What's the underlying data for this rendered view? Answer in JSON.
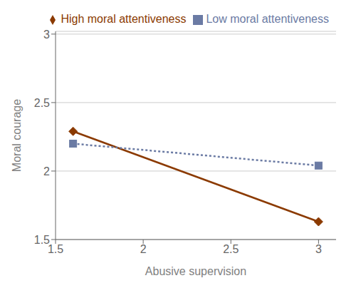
{
  "chart_data": {
    "type": "line",
    "x": [
      1.6,
      3.0
    ],
    "series": [
      {
        "name": "High moral attentiveness",
        "color": "#8B3A00",
        "values": [
          2.29,
          1.63
        ],
        "marker": "diamond",
        "line_style": "solid"
      },
      {
        "name": "Low moral attentiveness",
        "color": "#6B7BA4",
        "values": [
          2.2,
          2.04
        ],
        "marker": "square",
        "line_style": "dotted"
      }
    ],
    "xlabel": "Abusive supervision",
    "ylabel": "Moral courage",
    "xlim": [
      1.5,
      3.1
    ],
    "ylim": [
      1.5,
      3.02
    ],
    "xticks": [
      1.5,
      2.0,
      2.5,
      3.0
    ],
    "yticks": [
      1.5,
      2.0,
      2.5,
      3.0
    ],
    "grid": true,
    "legend": "upper right"
  }
}
